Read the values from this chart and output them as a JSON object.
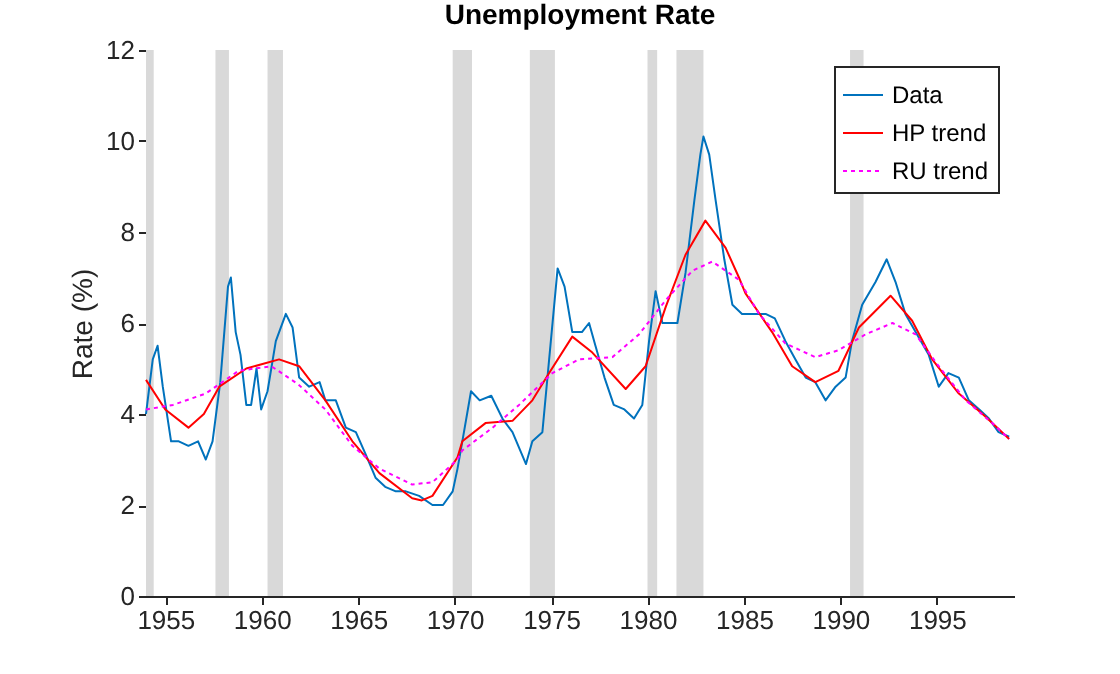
{
  "chart_data": {
    "type": "line",
    "title": "Unemployment Rate",
    "ylabel": "Rate (%)",
    "xlim": [
      1954,
      1999
    ],
    "xticks": [
      1955,
      1960,
      1965,
      1970,
      1975,
      1980,
      1985,
      1990,
      1995
    ],
    "ylim": [
      0,
      12
    ],
    "yticks": [
      0,
      2,
      4,
      6,
      8,
      10,
      12
    ],
    "grid": false,
    "legend": "top right",
    "marker": "none",
    "bands": [
      {
        "axis": "x",
        "from": 1954,
        "to": 1954.4,
        "color": "#d9d9d9"
      },
      {
        "axis": "x",
        "from": 1957.6,
        "to": 1958.3,
        "color": "#d9d9d9"
      },
      {
        "axis": "x",
        "from": 1960.3,
        "to": 1961.1,
        "color": "#d9d9d9"
      },
      {
        "axis": "x",
        "from": 1969.9,
        "to": 1970.9,
        "color": "#d9d9d9"
      },
      {
        "axis": "x",
        "from": 1973.9,
        "to": 1975.2,
        "color": "#d9d9d9"
      },
      {
        "axis": "x",
        "from": 1980,
        "to": 1980.5,
        "color": "#d9d9d9"
      },
      {
        "axis": "x",
        "from": 1981.5,
        "to": 1982.9,
        "color": "#d9d9d9"
      },
      {
        "axis": "x",
        "from": 1990.5,
        "to": 1991.2,
        "color": "#d9d9d9"
      }
    ],
    "series": [
      {
        "name": "Data",
        "color": "#0072bd",
        "line_style": "solid",
        "x": [
          1954,
          1954.35,
          1954.6,
          1954.87,
          1955.3,
          1955.7,
          1956.2,
          1956.7,
          1957.1,
          1957.45,
          1957.85,
          1958.25,
          1958.4,
          1958.65,
          1958.9,
          1959.2,
          1959.45,
          1959.73,
          1959.97,
          1960.3,
          1960.73,
          1961.25,
          1961.6,
          1961.94,
          1962.46,
          1963,
          1963.3,
          1963.84,
          1964.36,
          1964.88,
          1965.4,
          1965.9,
          1966.4,
          1966.95,
          1967.47,
          1968.16,
          1968.85,
          1969.4,
          1969.9,
          1970.15,
          1970.4,
          1970.85,
          1971.3,
          1971.9,
          1972.48,
          1973,
          1973.7,
          1974.03,
          1974.55,
          1974.9,
          1975.34,
          1975.7,
          1976.1,
          1976.6,
          1976.97,
          1977.3,
          1977.77,
          1978.25,
          1978.8,
          1979.3,
          1979.73,
          1980.08,
          1980.42,
          1980.77,
          1981.11,
          1981.55,
          1981.97,
          1982.43,
          1982.74,
          1982.9,
          1983.2,
          1983.53,
          1983.98,
          1984.4,
          1984.9,
          1985.3,
          1986.12,
          1986.6,
          1987.15,
          1987.67,
          1988.2,
          1988.7,
          1989.23,
          1989.75,
          1990.27,
          1990.6,
          1991.13,
          1991.82,
          1992.4,
          1992.86,
          1993.37,
          1993.9,
          1994.58,
          1995.1,
          1995.6,
          1996.14,
          1996.66,
          1997.2,
          1997.7,
          1998.2,
          1998.75
        ],
        "values": [
          4.0,
          5.2,
          5.5,
          4.6,
          3.4,
          3.4,
          3.3,
          3.4,
          3.0,
          3.4,
          4.7,
          6.8,
          7.0,
          5.8,
          5.3,
          4.2,
          4.2,
          5.0,
          4.1,
          4.5,
          5.6,
          6.2,
          5.9,
          4.8,
          4.6,
          4.7,
          4.3,
          4.3,
          3.7,
          3.6,
          3.1,
          2.6,
          2.4,
          2.3,
          2.3,
          2.2,
          2.0,
          2.0,
          2.3,
          2.8,
          3.4,
          4.5,
          4.3,
          4.4,
          3.9,
          3.6,
          2.9,
          3.4,
          3.6,
          5.2,
          7.2,
          6.8,
          5.8,
          5.8,
          6.0,
          5.5,
          4.8,
          4.2,
          4.1,
          3.9,
          4.2,
          5.6,
          6.7,
          6.0,
          6.0,
          6.0,
          7.1,
          8.7,
          9.7,
          10.1,
          9.7,
          8.7,
          7.4,
          6.4,
          6.2,
          6.2,
          6.2,
          6.1,
          5.6,
          5.2,
          4.8,
          4.7,
          4.3,
          4.6,
          4.8,
          5.6,
          6.4,
          6.9,
          7.4,
          6.9,
          6.2,
          5.8,
          5.3,
          4.6,
          4.9,
          4.8,
          4.3,
          4.1,
          3.9,
          3.6,
          3.5
        ]
      },
      {
        "name": "HP trend",
        "color": "#ff0000",
        "line_style": "solid",
        "x": [
          1954,
          1955,
          1956.2,
          1957,
          1957.8,
          1959.2,
          1960.9,
          1961.94,
          1963.3,
          1964.7,
          1966.1,
          1967.8,
          1968.3,
          1968.85,
          1970.15,
          1970.4,
          1971.6,
          1973,
          1974.03,
          1974.9,
          1976.1,
          1977.14,
          1978.87,
          1979.9,
          1980.94,
          1981.97,
          1983,
          1984.05,
          1984.74,
          1985.08,
          1986.46,
          1987.5,
          1988.7,
          1989.9,
          1990.96,
          1992.6,
          1993.72,
          1994.76,
          1996.14,
          1997.5,
          1998.75
        ],
        "values": [
          4.75,
          4.1,
          3.7,
          4.0,
          4.6,
          5.0,
          5.2,
          5.05,
          4.3,
          3.4,
          2.7,
          2.15,
          2.1,
          2.2,
          3.05,
          3.4,
          3.8,
          3.85,
          4.3,
          4.9,
          5.7,
          5.35,
          4.55,
          5.05,
          6.35,
          7.5,
          8.25,
          7.65,
          7.0,
          6.65,
          5.8,
          5.05,
          4.7,
          4.95,
          5.9,
          6.6,
          6.05,
          5.2,
          4.45,
          3.95,
          3.45
        ]
      },
      {
        "name": "RU trend",
        "color": "#ff00ff",
        "line_style": "dotted",
        "x": [
          1954,
          1955.4,
          1957.1,
          1958.8,
          1960.5,
          1961.9,
          1963.3,
          1964.7,
          1966.1,
          1967.8,
          1968.85,
          1970.15,
          1970.4,
          1971.97,
          1973.34,
          1975.07,
          1976.45,
          1978.18,
          1979.56,
          1980.94,
          1982.33,
          1983.36,
          1984.74,
          1985.78,
          1987.15,
          1988.7,
          1989.9,
          1991.3,
          1992.7,
          1993.9,
          1995.1,
          1996.5,
          1997.87,
          1998.75
        ],
        "values": [
          4.1,
          4.2,
          4.45,
          4.95,
          5.05,
          4.65,
          4.1,
          3.3,
          2.8,
          2.45,
          2.5,
          3.0,
          3.2,
          3.7,
          4.2,
          4.9,
          5.2,
          5.25,
          5.75,
          6.5,
          7.15,
          7.35,
          6.95,
          6.2,
          5.55,
          5.25,
          5.4,
          5.75,
          6.0,
          5.75,
          5.05,
          4.3,
          3.8,
          3.45
        ]
      }
    ]
  }
}
